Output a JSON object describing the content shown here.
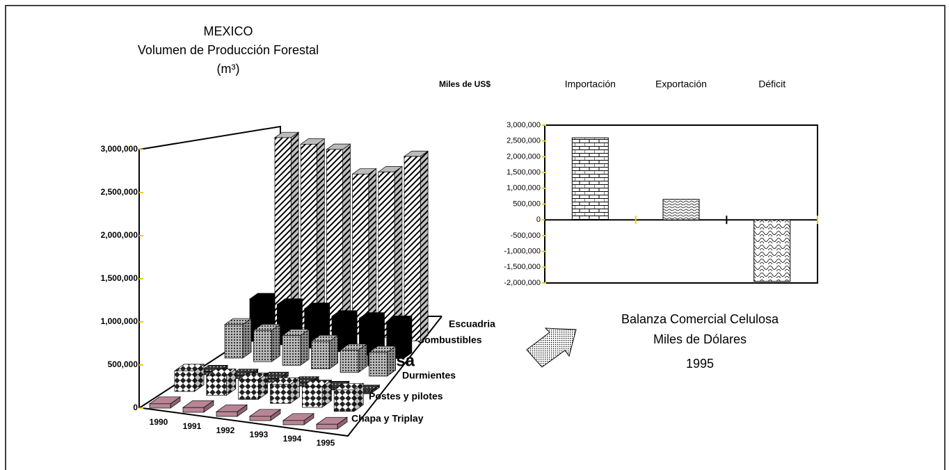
{
  "chart_data": [
    {
      "type": "bar3d",
      "title": "MEXICO",
      "subtitle": "Volumen de Producción Forestal",
      "unit": "(m³)",
      "categories": [
        "1990",
        "1991",
        "1992",
        "1993",
        "1994",
        "1995"
      ],
      "series": [
        {
          "name": "Chapa y Triplay",
          "color": "#b98595",
          "values": [
            50000,
            55000,
            55000,
            50000,
            50000,
            55000
          ]
        },
        {
          "name": "Postes y pilotes",
          "color": "#ffffff",
          "pattern": "checker",
          "values": [
            250000,
            240000,
            240000,
            230000,
            250000,
            260000
          ]
        },
        {
          "name": "Durmientes",
          "color": "#333333",
          "pattern": "darkdots",
          "values": [
            40000,
            40000,
            50000,
            40000,
            30000,
            30000
          ]
        },
        {
          "name": "Celulosa",
          "color": "#999999",
          "pattern": "graydots",
          "values": [
            450000,
            420000,
            400000,
            370000,
            300000,
            320000
          ]
        },
        {
          "name": "Combustibles",
          "color": "#000000",
          "values": [
            600000,
            570000,
            560000,
            500000,
            520000,
            520000
          ]
        },
        {
          "name": "Escuadria",
          "color": "#ffffff",
          "pattern": "diagonal",
          "values": [
            2800000,
            2750000,
            2720000,
            2400000,
            2480000,
            2760000
          ]
        }
      ],
      "ylim": [
        0,
        3000000
      ],
      "yticks": [
        0,
        {
          "value": 500000,
          "label": "500,000"
        },
        {
          "value": 1000000,
          "label": "1,000,000"
        },
        {
          "value": 1500000,
          "label": "1,500,000"
        },
        {
          "value": 2000000,
          "label": "2,000,000"
        },
        {
          "value": 2500000,
          "label": "2,500,000"
        },
        {
          "value": 3000000,
          "label": "3,000,000"
        }
      ]
    },
    {
      "type": "bar",
      "title": "Balanza Comercial Celulosa",
      "subtitle": "Miles de Dólares",
      "year": "1995",
      "ylabel": "Miles de US$",
      "categories": [
        "Importación",
        "Exportación",
        "Déficit"
      ],
      "values": [
        2600000,
        650000,
        -1950000
      ],
      "patterns": [
        "brick",
        "wave",
        "scale"
      ],
      "ylim": [
        -2000000,
        3000000
      ],
      "yticks": [
        {
          "value": -2000000,
          "label": "-2,000,000"
        },
        {
          "value": -1500000,
          "label": "-1,500,000"
        },
        {
          "value": -1000000,
          "label": "-1,000,000"
        },
        {
          "value": -500000,
          "label": "-500,000"
        },
        0,
        {
          "value": 500000,
          "label": "500,000"
        },
        {
          "value": 1000000,
          "label": "1,000,000"
        },
        {
          "value": 1500000,
          "label": "1,500,000"
        },
        {
          "value": 2000000,
          "label": "2,000,000"
        },
        {
          "value": 2500000,
          "label": "2,500,000"
        },
        {
          "value": 3000000,
          "label": "3,000,000"
        }
      ]
    }
  ]
}
